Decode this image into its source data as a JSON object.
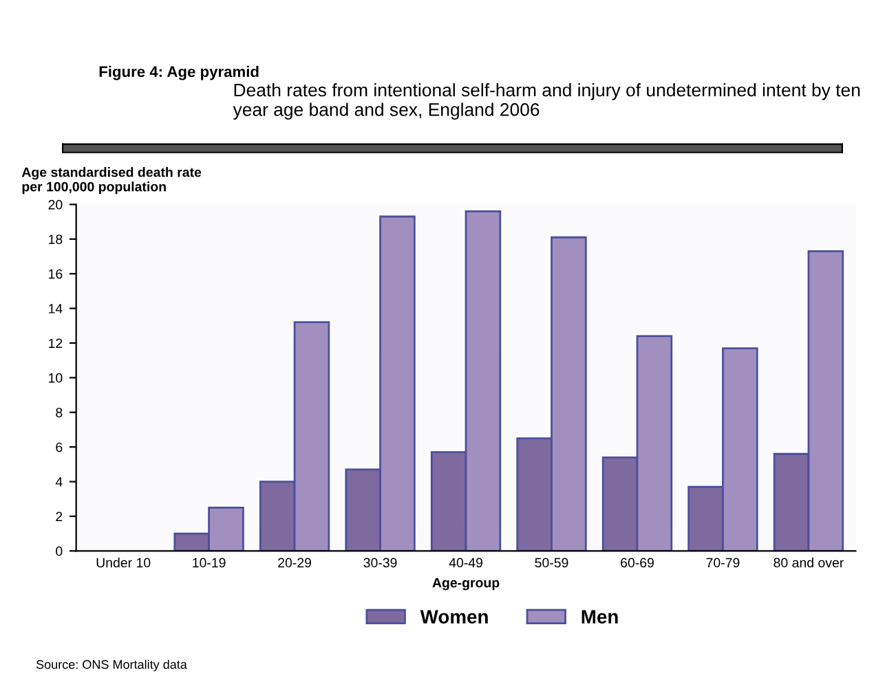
{
  "chart_data": {
    "type": "bar",
    "title": "Figure 4: Age pyramid",
    "subtitle": "Death rates from intentional self-harm and injury of undetermined intent by ten year age band and sex, England 2006",
    "xlabel": "Age-group",
    "ylabel": "Age standardised death rate\nper 100,000 population",
    "categories": [
      "Under 10",
      "10-19",
      "20-29",
      "30-39",
      "40-49",
      "50-59",
      "60-69",
      "70-79",
      "80 and over"
    ],
    "series": [
      {
        "name": "Women",
        "color": "#7f6aa0",
        "values": [
          null,
          1.0,
          4.0,
          4.7,
          5.7,
          6.5,
          5.4,
          3.7,
          5.6
        ]
      },
      {
        "name": "Men",
        "color": "#a190bf",
        "values": [
          null,
          2.5,
          13.2,
          19.3,
          19.6,
          18.1,
          12.4,
          11.7,
          17.3
        ]
      }
    ],
    "ylim": [
      0,
      20
    ],
    "yticks": [
      0,
      2,
      4,
      6,
      8,
      10,
      12,
      14,
      16,
      18,
      20
    ],
    "grid": false,
    "legend": "bottom",
    "annotations": [
      "Source: ONS Mortality data"
    ]
  }
}
